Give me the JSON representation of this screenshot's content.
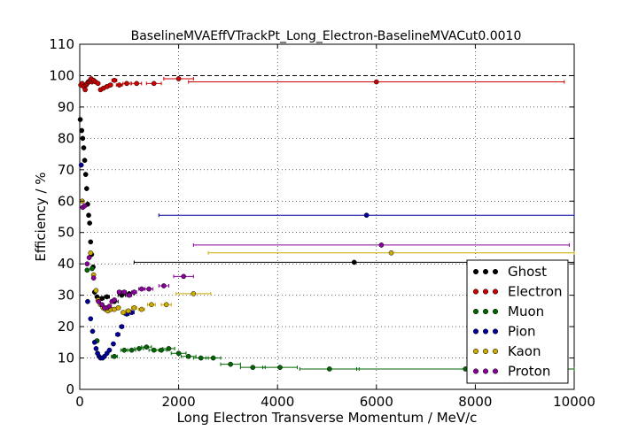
{
  "chart_data": {
    "type": "scatter",
    "title": "BaselineMVAEffVTrackPt_Long_Electron-BaselineMVACut0.0010",
    "xlabel": "Long Electron Transverse Momentum / MeV/c",
    "ylabel": "Efficiency / %",
    "xlim": [
      0,
      10000
    ],
    "ylim": [
      0,
      110
    ],
    "xticks": [
      "0",
      "2000",
      "4000",
      "6000",
      "8000",
      "10000"
    ],
    "yticks": [
      "0",
      "10",
      "20",
      "30",
      "40",
      "50",
      "60",
      "70",
      "80",
      "90",
      "100",
      "110"
    ],
    "reference_line": 100,
    "legend_position": "lower-right",
    "series": [
      {
        "name": "Ghost",
        "color": "#000000",
        "points": [
          [
            10,
            86,
            10
          ],
          [
            40,
            82.5,
            10
          ],
          [
            60,
            80,
            10
          ],
          [
            80,
            77,
            10
          ],
          [
            100,
            73,
            10
          ],
          [
            120,
            68.5,
            10
          ],
          [
            140,
            64,
            10
          ],
          [
            160,
            59,
            10
          ],
          [
            180,
            55.5,
            10
          ],
          [
            200,
            53,
            10
          ],
          [
            220,
            47,
            10
          ],
          [
            240,
            43,
            10
          ],
          [
            270,
            39,
            15
          ],
          [
            300,
            31,
            15
          ],
          [
            350,
            29.5,
            25
          ],
          [
            450,
            29,
            40
          ],
          [
            550,
            29.5,
            50
          ],
          [
            700,
            28,
            75
          ],
          [
            850,
            30,
            75
          ],
          [
            1000,
            30.5,
            100
          ],
          [
            5550,
            40.5,
            4450
          ]
        ]
      },
      {
        "name": "Electron",
        "color": "#cc0000",
        "points": [
          [
            20,
            97,
            10
          ],
          [
            50,
            97.5,
            10
          ],
          [
            80,
            96.5,
            10
          ],
          [
            110,
            95.5,
            10
          ],
          [
            130,
            97,
            10
          ],
          [
            150,
            97.5,
            10
          ],
          [
            170,
            98,
            10
          ],
          [
            190,
            98,
            10
          ],
          [
            210,
            98.5,
            10
          ],
          [
            230,
            99,
            10
          ],
          [
            250,
            98,
            10
          ],
          [
            280,
            98.5,
            15
          ],
          [
            320,
            98,
            25
          ],
          [
            370,
            97.5,
            25
          ],
          [
            420,
            95.5,
            30
          ],
          [
            480,
            96,
            30
          ],
          [
            550,
            96.5,
            40
          ],
          [
            620,
            97,
            40
          ],
          [
            700,
            98.5,
            50
          ],
          [
            800,
            97,
            60
          ],
          [
            950,
            97.5,
            75
          ],
          [
            1150,
            97.5,
            100
          ],
          [
            1500,
            97.5,
            150
          ],
          [
            2000,
            99,
            300
          ],
          [
            6000,
            98,
            3800
          ]
        ]
      },
      {
        "name": "Muon",
        "color": "#006600",
        "points": [
          [
            150,
            38,
            20
          ],
          [
            250,
            38.5,
            25
          ],
          [
            350,
            15.5,
            30
          ],
          [
            700,
            10.5,
            60
          ],
          [
            900,
            12.5,
            70
          ],
          [
            1050,
            12.5,
            80
          ],
          [
            1200,
            13,
            90
          ],
          [
            1350,
            13.5,
            100
          ],
          [
            1500,
            12.5,
            100
          ],
          [
            1650,
            12.5,
            110
          ],
          [
            1800,
            13,
            120
          ],
          [
            2000,
            11.5,
            150
          ],
          [
            2200,
            10.5,
            150
          ],
          [
            2450,
            10,
            150
          ],
          [
            2700,
            10,
            150
          ],
          [
            3050,
            8,
            200
          ],
          [
            3500,
            7,
            250
          ],
          [
            4050,
            7,
            350
          ],
          [
            5050,
            6.5,
            600
          ],
          [
            7800,
            6.5,
            2200
          ]
        ]
      },
      {
        "name": "Pion",
        "color": "#000099",
        "points": [
          [
            30,
            71.5,
            10
          ],
          [
            160,
            28,
            15
          ],
          [
            220,
            22.5,
            15
          ],
          [
            260,
            18.5,
            15
          ],
          [
            300,
            15,
            15
          ],
          [
            330,
            13,
            15
          ],
          [
            360,
            11.5,
            15
          ],
          [
            390,
            10.5,
            15
          ],
          [
            420,
            10,
            15
          ],
          [
            460,
            10,
            20
          ],
          [
            500,
            10.5,
            20
          ],
          [
            550,
            11.5,
            25
          ],
          [
            600,
            12.5,
            25
          ],
          [
            680,
            14.5,
            30
          ],
          [
            770,
            17.5,
            40
          ],
          [
            850,
            20,
            40
          ],
          [
            950,
            24,
            50
          ],
          [
            1050,
            24.5,
            50
          ],
          [
            5800,
            55.5,
            4200
          ]
        ]
      },
      {
        "name": "Kaon",
        "color": "#ccaa00",
        "points": [
          [
            50,
            60,
            10
          ],
          [
            220,
            43.5,
            20
          ],
          [
            280,
            36.5,
            20
          ],
          [
            330,
            31.5,
            20
          ],
          [
            370,
            28.5,
            20
          ],
          [
            420,
            27,
            25
          ],
          [
            470,
            26,
            25
          ],
          [
            520,
            25.5,
            25
          ],
          [
            570,
            25,
            25
          ],
          [
            630,
            25.5,
            30
          ],
          [
            700,
            25.5,
            30
          ],
          [
            780,
            26,
            40
          ],
          [
            880,
            24.5,
            40
          ],
          [
            980,
            25,
            50
          ],
          [
            1100,
            26,
            50
          ],
          [
            1250,
            25.5,
            60
          ],
          [
            1450,
            27,
            80
          ],
          [
            1750,
            27,
            100
          ],
          [
            2300,
            30.5,
            350
          ],
          [
            6300,
            43.5,
            3700
          ]
        ]
      },
      {
        "name": "Proton",
        "color": "#880099",
        "points": [
          [
            60,
            58,
            10
          ],
          [
            100,
            58.5,
            10
          ],
          [
            150,
            40,
            15
          ],
          [
            190,
            42,
            15
          ],
          [
            280,
            35.5,
            20
          ],
          [
            380,
            28,
            20
          ],
          [
            450,
            27,
            25
          ],
          [
            500,
            26,
            25
          ],
          [
            550,
            26,
            25
          ],
          [
            600,
            26.5,
            25
          ],
          [
            650,
            28,
            25
          ],
          [
            700,
            28.5,
            30
          ],
          [
            800,
            31,
            40
          ],
          [
            900,
            31,
            40
          ],
          [
            1000,
            30,
            50
          ],
          [
            1100,
            31,
            50
          ],
          [
            1250,
            32,
            60
          ],
          [
            1400,
            32,
            80
          ],
          [
            1700,
            33,
            100
          ],
          [
            2100,
            36,
            200
          ],
          [
            6100,
            46,
            3800
          ]
        ]
      }
    ]
  }
}
